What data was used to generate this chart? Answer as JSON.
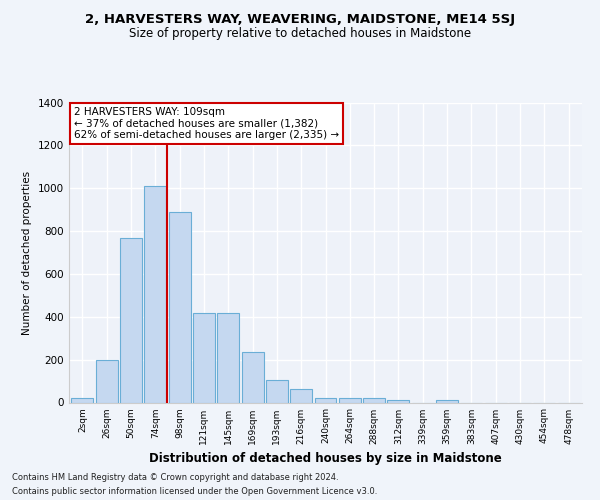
{
  "title": "2, HARVESTERS WAY, WEAVERING, MAIDSTONE, ME14 5SJ",
  "subtitle": "Size of property relative to detached houses in Maidstone",
  "xlabel": "Distribution of detached houses by size in Maidstone",
  "ylabel": "Number of detached properties",
  "categories": [
    "2sqm",
    "26sqm",
    "50sqm",
    "74sqm",
    "98sqm",
    "121sqm",
    "145sqm",
    "169sqm",
    "193sqm",
    "216sqm",
    "240sqm",
    "264sqm",
    "288sqm",
    "312sqm",
    "339sqm",
    "359sqm",
    "383sqm",
    "407sqm",
    "430sqm",
    "454sqm",
    "478sqm"
  ],
  "values": [
    20,
    200,
    770,
    1010,
    890,
    420,
    420,
    235,
    105,
    65,
    20,
    20,
    20,
    10,
    0,
    10,
    0,
    0,
    0,
    0,
    0
  ],
  "bar_color": "#c5d8f0",
  "bar_edge_color": "#6aaed6",
  "vline_color": "#cc0000",
  "vline_x_index": 4,
  "annotation_text": "2 HARVESTERS WAY: 109sqm\n← 37% of detached houses are smaller (1,382)\n62% of semi-detached houses are larger (2,335) →",
  "annotation_box_color": "white",
  "annotation_box_edge_color": "#cc0000",
  "footer_line1": "Contains HM Land Registry data © Crown copyright and database right 2024.",
  "footer_line2": "Contains public sector information licensed under the Open Government Licence v3.0.",
  "yticks": [
    0,
    200,
    400,
    600,
    800,
    1000,
    1200,
    1400
  ],
  "ylim": [
    0,
    1400
  ],
  "background_color": "#f0f4fa",
  "plot_background_color": "#eef2f9"
}
